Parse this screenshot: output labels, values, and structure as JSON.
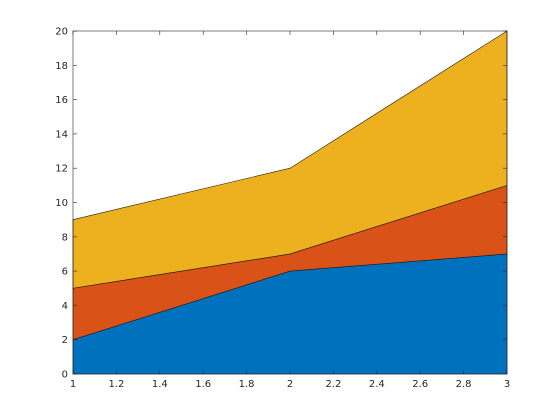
{
  "chart_data": {
    "type": "area",
    "stacked": true,
    "x": [
      1,
      2,
      3
    ],
    "xlim": [
      1,
      3
    ],
    "ylim": [
      0,
      20
    ],
    "xticks": [
      "1",
      "1.2",
      "1.4",
      "1.6",
      "1.8",
      "2",
      "2.2",
      "2.4",
      "2.6",
      "2.8",
      "3"
    ],
    "yticks": [
      "0",
      "2",
      "4",
      "6",
      "8",
      "10",
      "12",
      "14",
      "16",
      "18",
      "20"
    ],
    "series": [
      {
        "values": [
          2,
          6,
          7
        ],
        "color": "#0072BD"
      },
      {
        "values": [
          3,
          1,
          4
        ],
        "color": "#D95319"
      },
      {
        "values": [
          4,
          5,
          9
        ],
        "color": "#EDB120"
      }
    ],
    "grid": false,
    "legend": "none",
    "box": true
  }
}
